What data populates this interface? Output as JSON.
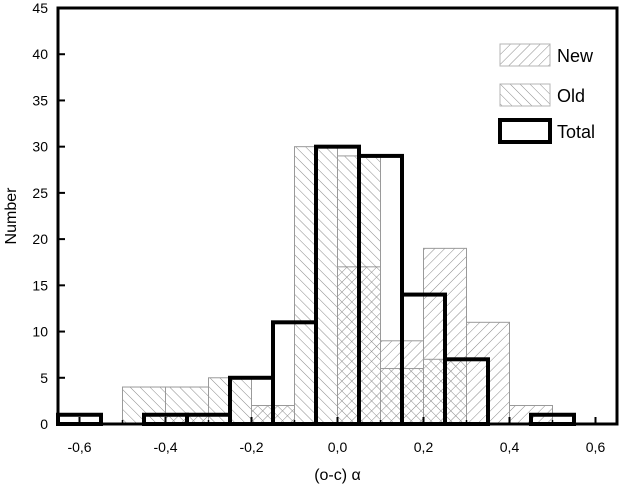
{
  "chart_data": {
    "type": "bar",
    "xlabel": "(o-c) α",
    "ylabel": "Number",
    "xlim": [
      -0.65,
      0.65
    ],
    "ylim": [
      0,
      45
    ],
    "x_ticks": [
      "-0,6",
      "-0,4",
      "-0,2",
      "0,0",
      "0,2",
      "0,4",
      "0,6"
    ],
    "x_tick_values": [
      -0.6,
      -0.4,
      -0.2,
      0.0,
      0.2,
      0.4,
      0.6
    ],
    "y_ticks": [
      "0",
      "5",
      "10",
      "15",
      "20",
      "25",
      "30",
      "35",
      "40",
      "45"
    ],
    "y_tick_values": [
      0,
      5,
      10,
      15,
      20,
      25,
      30,
      35,
      40,
      45
    ],
    "grid": false,
    "legend_position": "top-right",
    "series": [
      {
        "name": "New",
        "style": "hatch-forward",
        "bins": [
          {
            "x0": -0.4,
            "x1": -0.3,
            "count": 1
          },
          {
            "x0": -0.2,
            "x1": -0.1,
            "count": 2
          },
          {
            "x0": 0.0,
            "x1": 0.1,
            "count": 17
          },
          {
            "x0": 0.1,
            "x1": 0.2,
            "count": 9
          },
          {
            "x0": 0.2,
            "x1": 0.3,
            "count": 19
          },
          {
            "x0": 0.3,
            "x1": 0.4,
            "count": 11
          },
          {
            "x0": 0.4,
            "x1": 0.5,
            "count": 2
          }
        ]
      },
      {
        "name": "Old",
        "style": "hatch-back",
        "bins": [
          {
            "x0": -0.5,
            "x1": -0.4,
            "count": 4
          },
          {
            "x0": -0.4,
            "x1": -0.3,
            "count": 4
          },
          {
            "x0": -0.3,
            "x1": -0.2,
            "count": 5
          },
          {
            "x0": -0.2,
            "x1": -0.1,
            "count": 2
          },
          {
            "x0": -0.1,
            "x1": 0.0,
            "count": 30
          },
          {
            "x0": 0.0,
            "x1": 0.1,
            "count": 29
          },
          {
            "x0": 0.1,
            "x1": 0.2,
            "count": 6
          },
          {
            "x0": 0.2,
            "x1": 0.3,
            "count": 7
          }
        ]
      },
      {
        "name": "Total",
        "style": "thick-outline",
        "bins": [
          {
            "x0": -0.65,
            "x1": -0.55,
            "count": 1
          },
          {
            "x0": -0.45,
            "x1": -0.35,
            "count": 1
          },
          {
            "x0": -0.35,
            "x1": -0.25,
            "count": 1
          },
          {
            "x0": -0.25,
            "x1": -0.15,
            "count": 5
          },
          {
            "x0": -0.15,
            "x1": -0.05,
            "count": 11
          },
          {
            "x0": -0.05,
            "x1": 0.05,
            "count": 30
          },
          {
            "x0": 0.05,
            "x1": 0.15,
            "count": 29
          },
          {
            "x0": 0.15,
            "x1": 0.25,
            "count": 14
          },
          {
            "x0": 0.25,
            "x1": 0.35,
            "count": 7
          },
          {
            "x0": 0.45,
            "x1": 0.55,
            "count": 1
          }
        ]
      }
    ]
  }
}
